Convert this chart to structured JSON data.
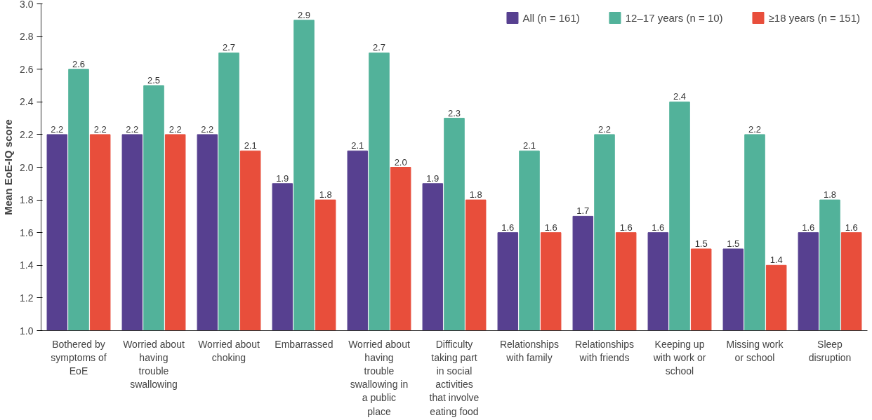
{
  "chart_data": {
    "type": "bar",
    "ylabel": "Mean EoE-IQ score",
    "categories": [
      "Bothered by symptoms of EoE",
      "Worried about having trouble swallowing",
      "Worried about choking",
      "Embarrassed",
      "Worried about having trouble swallowing in a public place",
      "Difficulty taking part in social activities that involve eating food",
      "Relationships with family",
      "Relationships with friends",
      "Keeping up with work or school",
      "Missing work or school",
      "Sleep disruption"
    ],
    "series": [
      {
        "name": "All (n = 161)",
        "color": "#574090",
        "values": [
          2.2,
          2.2,
          2.2,
          1.9,
          2.1,
          1.9,
          1.6,
          1.7,
          1.6,
          1.5,
          1.6
        ],
        "value_labels": [
          "2.2",
          "2.2",
          "2.2",
          "1.9",
          "2.1",
          "1.9",
          "1.6",
          "1.7",
          "1.6",
          "1.5",
          "1.6"
        ]
      },
      {
        "name": "12–17 years (n = 10)",
        "color": "#52b29a",
        "values": [
          2.6,
          2.5,
          2.7,
          2.9,
          2.7,
          2.3,
          2.1,
          2.2,
          2.4,
          2.2,
          1.8
        ],
        "value_labels": [
          "2.6",
          "2.5",
          "2.7",
          "2.9",
          "2.7",
          "2.3",
          "2.1",
          "2.2",
          "2.4",
          "2.2",
          "1.8"
        ]
      },
      {
        "name": "≥18 years (n = 151)",
        "color": "#e84e3b",
        "values": [
          2.2,
          2.2,
          2.1,
          1.8,
          2.0,
          1.8,
          1.6,
          1.6,
          1.5,
          1.4,
          1.6
        ],
        "value_labels": [
          "2.2",
          "2.2",
          "2.1",
          "1.8",
          "2.0",
          "1.8",
          "1.6",
          "1.6",
          "1.5",
          "1.4",
          "1.6"
        ]
      }
    ],
    "ylim": [
      1,
      3
    ],
    "yticks": [
      {
        "value": 1,
        "label": "1.0"
      },
      1.2,
      1.4,
      1.6,
      1.8,
      {
        "value": 2,
        "label": "2.0"
      },
      2.2,
      2.4,
      2.6,
      2.8,
      {
        "value": 3,
        "label": "3.0"
      }
    ],
    "grid": false,
    "legend": "top right"
  }
}
